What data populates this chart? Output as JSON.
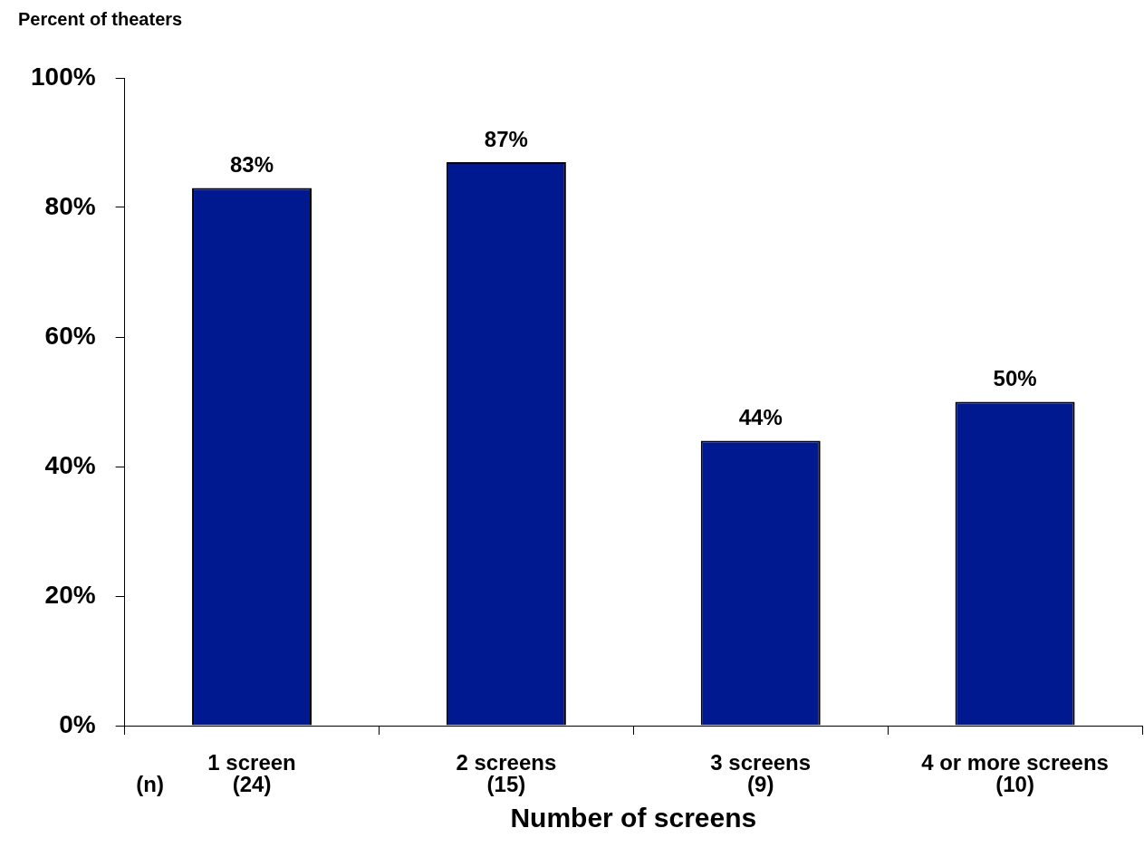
{
  "chart_data": {
    "type": "bar",
    "ylabel": "Percent of theaters",
    "xlabel": "Number of screens",
    "categories": [
      "1 screen\n(24)",
      "2 screens\n(15)",
      "3 screens\n(9)",
      "4 or more screens\n(10)"
    ],
    "values": [
      83,
      87,
      44,
      50
    ],
    "color": "#001890",
    "value_labels": [
      "83%",
      "87%",
      "44%",
      "50%"
    ],
    "ylim": [
      0,
      100
    ],
    "yticks": [
      {
        "value": 0,
        "label": "0%"
      },
      {
        "value": 20,
        "label": "20%"
      },
      {
        "value": 40,
        "label": "40%"
      },
      {
        "value": 60,
        "label": "60%"
      },
      {
        "value": 80,
        "label": "80%"
      },
      {
        "value": 100,
        "label": "100%"
      }
    ],
    "grid": false,
    "legend": false,
    "annotations": [
      "(n)"
    ]
  }
}
